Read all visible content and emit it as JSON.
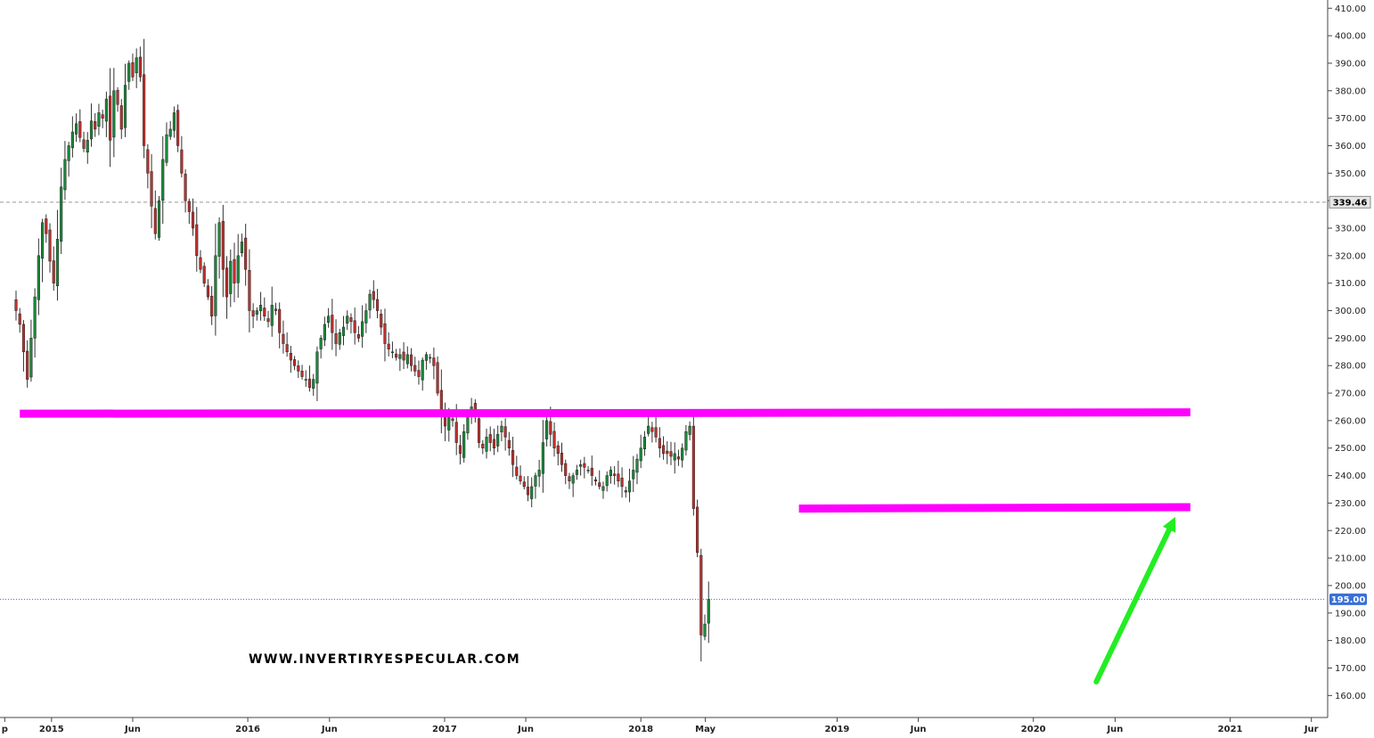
{
  "watermark": "WWW.INVERTIRYESPECULAR.COM",
  "colors": {
    "up": "#1a8a3a",
    "down": "#c0302c",
    "wick": "#333333",
    "support_resistance": "#ff00ff",
    "arrow": "#22ee22",
    "current_price_bg": "#3a6fd8",
    "reference_line": "#999999",
    "current_line": "#3a6fd8"
  },
  "chart_data": {
    "type": "candlestick",
    "interval": "weekly",
    "x_range": [
      "2014-10-27",
      "2021-06-28"
    ],
    "ylim": [
      152,
      413
    ],
    "y_ticks": [
      160,
      170,
      180,
      190,
      200,
      210,
      220,
      230,
      240,
      250,
      260,
      270,
      280,
      290,
      300,
      310,
      320,
      330,
      340,
      350,
      360,
      370,
      380,
      390,
      400,
      410
    ],
    "x_ticks": [
      {
        "label": "p",
        "date": "2014-10-06"
      },
      {
        "label": "2015",
        "date": "2015-01-01"
      },
      {
        "label": "Jun",
        "date": "2015-06-01"
      },
      {
        "label": "2016",
        "date": "2016-01-01"
      },
      {
        "label": "Jun",
        "date": "2016-06-01"
      },
      {
        "label": "2017",
        "date": "2017-01-01"
      },
      {
        "label": "Jun",
        "date": "2017-06-01"
      },
      {
        "label": "2018",
        "date": "2018-01-01"
      },
      {
        "label": "May",
        "date": "2018-05-01"
      },
      {
        "label": "2019",
        "date": "2019-01-01"
      },
      {
        "label": "Jun",
        "date": "2019-06-01"
      },
      {
        "label": "2020",
        "date": "2020-01-01"
      },
      {
        "label": "Jun",
        "date": "2020-06-01"
      },
      {
        "label": "2021",
        "date": "2021-01-01"
      },
      {
        "label": "Jur",
        "date": "2021-06-01"
      }
    ],
    "reference_price": {
      "value": 339.46,
      "label": "339.46"
    },
    "current_price": {
      "value": 195.0,
      "label": "195.00"
    },
    "closes_anchor_start": "2014-10-27",
    "closes": [
      300,
      295,
      285,
      275,
      290,
      305,
      320,
      332,
      328,
      318,
      310,
      326,
      345,
      355,
      360,
      365,
      368,
      363,
      359,
      362,
      369,
      366,
      372,
      370,
      377,
      362,
      380,
      375,
      366,
      382,
      390,
      385,
      392,
      385,
      360,
      350,
      338,
      328,
      340,
      355,
      364,
      366,
      372,
      360,
      350,
      340,
      336,
      330,
      320,
      315,
      310,
      305,
      298,
      320,
      332,
      315,
      305,
      318,
      310,
      320,
      325,
      315,
      300,
      298,
      300,
      302,
      298,
      296,
      302,
      300,
      292,
      288,
      285,
      282,
      280,
      278,
      276,
      275,
      272,
      275,
      285,
      290,
      295,
      298,
      292,
      288,
      292,
      294,
      298,
      296,
      292,
      290,
      296,
      300,
      306,
      304,
      300,
      294,
      288,
      286,
      285,
      283,
      284,
      282,
      284,
      280,
      278,
      276,
      282,
      284,
      283,
      280,
      270,
      262,
      258,
      262,
      260,
      252,
      248,
      256,
      262,
      265,
      262,
      252,
      250,
      254,
      252,
      250,
      255,
      258,
      254,
      250,
      244,
      240,
      238,
      236,
      233,
      236,
      240,
      242,
      252,
      260,
      255,
      250,
      248,
      244,
      240,
      238,
      240,
      242,
      244,
      243,
      242,
      240,
      238,
      236,
      236,
      240,
      242,
      240,
      238,
      236,
      234,
      238,
      242,
      246,
      250,
      254,
      258,
      256,
      254,
      250,
      248,
      248,
      247,
      248,
      246,
      250,
      256,
      258,
      228,
      212,
      182,
      186,
      195
    ],
    "resistance_line": {
      "from": "2014-11-03",
      "to": "2020-10-19",
      "start_value": 262.5,
      "end_value": 263.0
    },
    "support_line": {
      "from": "2018-10-22",
      "to": "2020-10-19",
      "start_value": 228.0,
      "end_value": 228.5
    },
    "projection_arrow": {
      "from_date": "2020-04-27",
      "from_value": 165,
      "to_date": "2020-09-21",
      "to_value": 225
    }
  }
}
